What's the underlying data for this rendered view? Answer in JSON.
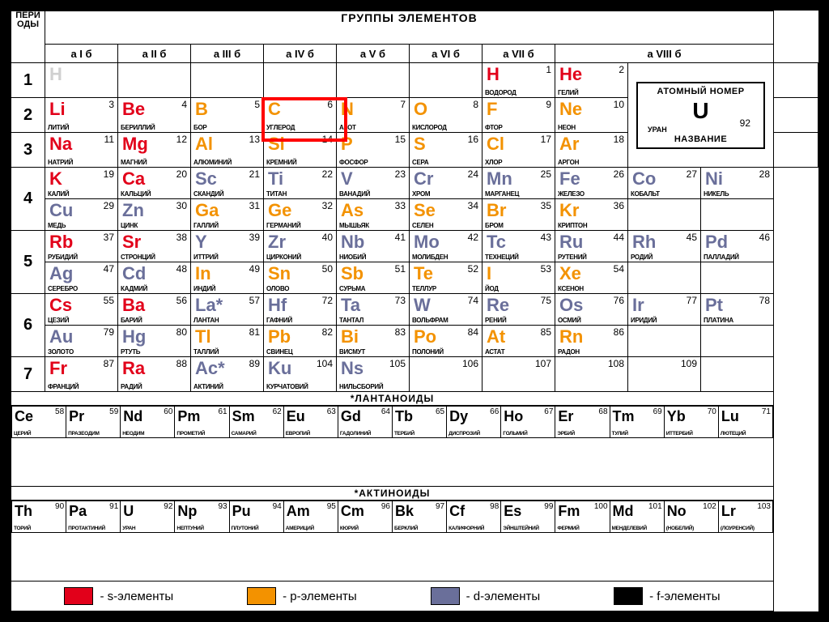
{
  "title_groups": "ГРУППЫ ЭЛЕМЕНТОВ",
  "title_periods": "ПЕРИ\nОДЫ",
  "group_labels": [
    "a  I  б",
    "a  II  б",
    "a  III  б",
    "a  IV  б",
    "a  V  б",
    "a  VI  б",
    "a  VII  б",
    "a          VIII          б"
  ],
  "periods": [
    "1",
    "2",
    "3",
    "4",
    "5",
    "6",
    "7"
  ],
  "colors": {
    "s": "#e2001a",
    "p": "#f39200",
    "d": "#6a6f9a",
    "f": "#000000",
    "h_outline": "#d0d0d0",
    "highlight": "#ff0000",
    "bg": "#ffffff",
    "border": "#000000"
  },
  "legend_box": {
    "title": "АТОМНЫЙ НОМЕР",
    "symbol": "U",
    "number": "92",
    "name": "УРАН",
    "name_label": "НАЗВАНИЕ"
  },
  "highlight_element": "C",
  "series": {
    "lanth_title": "*ЛАНТАНОИДЫ",
    "act_title": "*АКТИНОИДЫ"
  },
  "key": [
    {
      "color": "#e2001a",
      "label": "- s-элементы"
    },
    {
      "color": "#f39200",
      "label": "- p-элементы"
    },
    {
      "color": "#6a6f9a",
      "label": "- d-элементы"
    },
    {
      "color": "#000000",
      "label": "- f-элементы"
    }
  ],
  "main": [
    [
      [
        {
          "s": "H",
          "n": "",
          "nm": "",
          "c": "h"
        }
      ],
      [],
      [],
      [],
      [],
      [],
      [
        {
          "s": "H",
          "n": "1",
          "nm": "ВОДОРОД",
          "c": "s"
        }
      ],
      [
        {
          "s": "He",
          "n": "2",
          "nm": "ГЕЛИЙ",
          "c": "s"
        }
      ],
      "LEGEND"
    ],
    [
      [
        {
          "s": "Li",
          "n": "3",
          "nm": "ЛИТИЙ",
          "c": "s"
        }
      ],
      [
        {
          "s": "Be",
          "n": "4",
          "nm": "БЕРИЛЛИЙ",
          "c": "s"
        }
      ],
      [
        {
          "s": "B",
          "n": "5",
          "nm": "БОР",
          "c": "p"
        }
      ],
      [
        {
          "s": "C",
          "n": "6",
          "nm": "УГЛЕРОД",
          "c": "p"
        }
      ],
      [
        {
          "s": "N",
          "n": "7",
          "nm": "АЗОТ",
          "c": "p"
        }
      ],
      [
        {
          "s": "O",
          "n": "8",
          "nm": "КИСЛОРОД",
          "c": "p"
        }
      ],
      [
        {
          "s": "F",
          "n": "9",
          "nm": "ФТОР",
          "c": "p"
        }
      ],
      [
        {
          "s": "Ne",
          "n": "10",
          "nm": "НЕОН",
          "c": "p"
        }
      ],
      null
    ],
    [
      [
        {
          "s": "Na",
          "n": "11",
          "nm": "НАТРИЙ",
          "c": "s"
        }
      ],
      [
        {
          "s": "Mg",
          "n": "12",
          "nm": "МАГНИЙ",
          "c": "s"
        }
      ],
      [
        {
          "s": "Al",
          "n": "13",
          "nm": "АЛЮМИНИЙ",
          "c": "p"
        }
      ],
      [
        {
          "s": "Si",
          "n": "14",
          "nm": "КРЕМНИЙ",
          "c": "p"
        }
      ],
      [
        {
          "s": "P",
          "n": "15",
          "nm": "ФОСФОР",
          "c": "p"
        }
      ],
      [
        {
          "s": "S",
          "n": "16",
          "nm": "СЕРА",
          "c": "p"
        }
      ],
      [
        {
          "s": "Cl",
          "n": "17",
          "nm": "ХЛОР",
          "c": "p"
        }
      ],
      [
        {
          "s": "Ar",
          "n": "18",
          "nm": "АРГОН",
          "c": "p"
        }
      ],
      null
    ],
    [
      [
        {
          "s": "K",
          "n": "19",
          "nm": "КАЛИЙ",
          "c": "s"
        },
        {
          "s": "Cu",
          "n": "29",
          "nm": "МЕДЬ",
          "c": "d"
        }
      ],
      [
        {
          "s": "Ca",
          "n": "20",
          "nm": "КАЛЬЦИЙ",
          "c": "s"
        },
        {
          "s": "Zn",
          "n": "30",
          "nm": "ЦИНК",
          "c": "d"
        }
      ],
      [
        {
          "s": "Sc",
          "n": "21",
          "nm": "СКАНДИЙ",
          "c": "d"
        },
        {
          "s": "Ga",
          "n": "31",
          "nm": "ГАЛЛИЙ",
          "c": "p"
        }
      ],
      [
        {
          "s": "Ti",
          "n": "22",
          "nm": "ТИТАН",
          "c": "d"
        },
        {
          "s": "Ge",
          "n": "32",
          "nm": "ГЕРМАНИЙ",
          "c": "p"
        }
      ],
      [
        {
          "s": "V",
          "n": "23",
          "nm": "ВАНАДИЙ",
          "c": "d"
        },
        {
          "s": "As",
          "n": "33",
          "nm": "МЫШЬЯК",
          "c": "p"
        }
      ],
      [
        {
          "s": "Cr",
          "n": "24",
          "nm": "ХРОМ",
          "c": "d"
        },
        {
          "s": "Se",
          "n": "34",
          "nm": "СЕЛЕН",
          "c": "p"
        }
      ],
      [
        {
          "s": "Mn",
          "n": "25",
          "nm": "МАРГАНЕЦ",
          "c": "d"
        },
        {
          "s": "Br",
          "n": "35",
          "nm": "БРОМ",
          "c": "p"
        }
      ],
      [
        {
          "s": "Fe",
          "n": "26",
          "nm": "ЖЕЛЕЗО",
          "c": "d"
        },
        {
          "s": "Kr",
          "n": "36",
          "nm": "КРИПТОН",
          "c": "p"
        }
      ],
      [
        {
          "s": "Co",
          "n": "27",
          "nm": "КОБАЛЬТ",
          "c": "d"
        }
      ],
      [
        {
          "s": "Ni",
          "n": "28",
          "nm": "НИКЕЛЬ",
          "c": "d"
        }
      ]
    ],
    [
      [
        {
          "s": "Rb",
          "n": "37",
          "nm": "РУБИДИЙ",
          "c": "s"
        },
        {
          "s": "Ag",
          "n": "47",
          "nm": "СЕРЕБРО",
          "c": "d"
        }
      ],
      [
        {
          "s": "Sr",
          "n": "38",
          "nm": "СТРОНЦИЙ",
          "c": "s"
        },
        {
          "s": "Cd",
          "n": "48",
          "nm": "КАДМИЙ",
          "c": "d"
        }
      ],
      [
        {
          "s": "Y",
          "n": "39",
          "nm": "ИТТРИЙ",
          "c": "d"
        },
        {
          "s": "In",
          "n": "49",
          "nm": "ИНДИЙ",
          "c": "p"
        }
      ],
      [
        {
          "s": "Zr",
          "n": "40",
          "nm": "ЦИРКОНИЙ",
          "c": "d"
        },
        {
          "s": "Sn",
          "n": "50",
          "nm": "ОЛОВО",
          "c": "p"
        }
      ],
      [
        {
          "s": "Nb",
          "n": "41",
          "nm": "НИОБИЙ",
          "c": "d"
        },
        {
          "s": "Sb",
          "n": "51",
          "nm": "СУРЬМА",
          "c": "p"
        }
      ],
      [
        {
          "s": "Mo",
          "n": "42",
          "nm": "МОЛИБДЕН",
          "c": "d"
        },
        {
          "s": "Te",
          "n": "52",
          "nm": "ТЕЛЛУР",
          "c": "p"
        }
      ],
      [
        {
          "s": "Tc",
          "n": "43",
          "nm": "ТЕХНЕЦИЙ",
          "c": "d"
        },
        {
          "s": "I",
          "n": "53",
          "nm": "ЙОД",
          "c": "p"
        }
      ],
      [
        {
          "s": "Ru",
          "n": "44",
          "nm": "РУТЕНИЙ",
          "c": "d"
        },
        {
          "s": "Xe",
          "n": "54",
          "nm": "КСЕНОН",
          "c": "p"
        }
      ],
      [
        {
          "s": "Rh",
          "n": "45",
          "nm": "РОДИЙ",
          "c": "d"
        }
      ],
      [
        {
          "s": "Pd",
          "n": "46",
          "nm": "ПАЛЛАДИЙ",
          "c": "d"
        }
      ]
    ],
    [
      [
        {
          "s": "Cs",
          "n": "55",
          "nm": "ЦЕЗИЙ",
          "c": "s"
        },
        {
          "s": "Au",
          "n": "79",
          "nm": "ЗОЛОТО",
          "c": "d"
        }
      ],
      [
        {
          "s": "Ba",
          "n": "56",
          "nm": "БАРИЙ",
          "c": "s"
        },
        {
          "s": "Hg",
          "n": "80",
          "nm": "РТУТЬ",
          "c": "d"
        }
      ],
      [
        {
          "s": "La*",
          "n": "57",
          "nm": "ЛАНТАН",
          "c": "d"
        },
        {
          "s": "Tl",
          "n": "81",
          "nm": "ТАЛЛИЙ",
          "c": "p"
        }
      ],
      [
        {
          "s": "Hf",
          "n": "72",
          "nm": "ГАФНИЙ",
          "c": "d"
        },
        {
          "s": "Pb",
          "n": "82",
          "nm": "СВИНЕЦ",
          "c": "p"
        }
      ],
      [
        {
          "s": "Ta",
          "n": "73",
          "nm": "ТАНТАЛ",
          "c": "d"
        },
        {
          "s": "Bi",
          "n": "83",
          "nm": "ВИСМУТ",
          "c": "p"
        }
      ],
      [
        {
          "s": "W",
          "n": "74",
          "nm": "ВОЛЬФРАМ",
          "c": "d"
        },
        {
          "s": "Po",
          "n": "84",
          "nm": "ПОЛОНИЙ",
          "c": "p"
        }
      ],
      [
        {
          "s": "Re",
          "n": "75",
          "nm": "РЕНИЙ",
          "c": "d"
        },
        {
          "s": "At",
          "n": "85",
          "nm": "АСТАТ",
          "c": "p"
        }
      ],
      [
        {
          "s": "Os",
          "n": "76",
          "nm": "ОСМИЙ",
          "c": "d"
        },
        {
          "s": "Rn",
          "n": "86",
          "nm": "РАДОН",
          "c": "p"
        }
      ],
      [
        {
          "s": "Ir",
          "n": "77",
          "nm": "ИРИДИЙ",
          "c": "d"
        }
      ],
      [
        {
          "s": "Pt",
          "n": "78",
          "nm": "ПЛАТИНА",
          "c": "d"
        }
      ]
    ],
    [
      [
        {
          "s": "Fr",
          "n": "87",
          "nm": "ФРАНЦИЙ",
          "c": "s"
        }
      ],
      [
        {
          "s": "Ra",
          "n": "88",
          "nm": "РАДИЙ",
          "c": "s"
        }
      ],
      [
        {
          "s": "Ac*",
          "n": "89",
          "nm": "АКТИНИЙ",
          "c": "d"
        }
      ],
      [
        {
          "s": "Ku",
          "n": "104",
          "nm": "КУРЧАТОВИЙ",
          "c": "d"
        }
      ],
      [
        {
          "s": "Ns",
          "n": "105",
          "nm": "НИЛЬСБОРИЙ",
          "c": "d"
        }
      ],
      [
        {
          "s": "",
          "n": "106",
          "nm": "",
          "c": "d"
        }
      ],
      [
        {
          "s": "",
          "n": "107",
          "nm": "",
          "c": "d"
        }
      ],
      [
        {
          "s": "",
          "n": "108",
          "nm": "",
          "c": "d"
        }
      ],
      [
        {
          "s": "",
          "n": "109",
          "nm": "",
          "c": "d"
        }
      ],
      []
    ]
  ],
  "lanth": [
    {
      "s": "Ce",
      "n": "58",
      "nm": "ЦЕРИЙ"
    },
    {
      "s": "Pr",
      "n": "59",
      "nm": "ПРАЗЕОДИМ"
    },
    {
      "s": "Nd",
      "n": "60",
      "nm": "НЕОДИМ"
    },
    {
      "s": "Pm",
      "n": "61",
      "nm": "ПРОМЕТИЙ"
    },
    {
      "s": "Sm",
      "n": "62",
      "nm": "САМАРИЙ"
    },
    {
      "s": "Eu",
      "n": "63",
      "nm": "ЕВРОПИЙ"
    },
    {
      "s": "Gd",
      "n": "64",
      "nm": "ГАДОЛИНИЙ"
    },
    {
      "s": "Tb",
      "n": "65",
      "nm": "ТЕРБИЙ"
    },
    {
      "s": "Dy",
      "n": "66",
      "nm": "ДИСПРОЗИЙ"
    },
    {
      "s": "Ho",
      "n": "67",
      "nm": "ГОЛЬМИЙ"
    },
    {
      "s": "Er",
      "n": "68",
      "nm": "ЭРБИЙ"
    },
    {
      "s": "Tm",
      "n": "69",
      "nm": "ТУЛИЙ"
    },
    {
      "s": "Yb",
      "n": "70",
      "nm": "ИТТЕРБИЙ"
    },
    {
      "s": "Lu",
      "n": "71",
      "nm": "ЛЮТЕЦИЙ"
    }
  ],
  "act": [
    {
      "s": "Th",
      "n": "90",
      "nm": "ТОРИЙ"
    },
    {
      "s": "Pa",
      "n": "91",
      "nm": "ПРОТАКТИНИЙ"
    },
    {
      "s": "U",
      "n": "92",
      "nm": "УРАН"
    },
    {
      "s": "Np",
      "n": "93",
      "nm": "НЕПТУНИЙ"
    },
    {
      "s": "Pu",
      "n": "94",
      "nm": "ПЛУТОНИЙ"
    },
    {
      "s": "Am",
      "n": "95",
      "nm": "АМЕРИЦИЙ"
    },
    {
      "s": "Cm",
      "n": "96",
      "nm": "КЮРИЙ"
    },
    {
      "s": "Bk",
      "n": "97",
      "nm": "БЕРКЛИЙ"
    },
    {
      "s": "Cf",
      "n": "98",
      "nm": "КАЛИФОРНИЙ"
    },
    {
      "s": "Es",
      "n": "99",
      "nm": "ЭЙНШТЕЙНИЙ"
    },
    {
      "s": "Fm",
      "n": "100",
      "nm": "ФЕРМИЙ"
    },
    {
      "s": "Md",
      "n": "101",
      "nm": "МЕНДЕЛЕВИЙ"
    },
    {
      "s": "No",
      "n": "102",
      "nm": "(НОБЕЛИЙ)"
    },
    {
      "s": "Lr",
      "n": "103",
      "nm": "(ЛОУРЕНСИЙ)"
    }
  ]
}
